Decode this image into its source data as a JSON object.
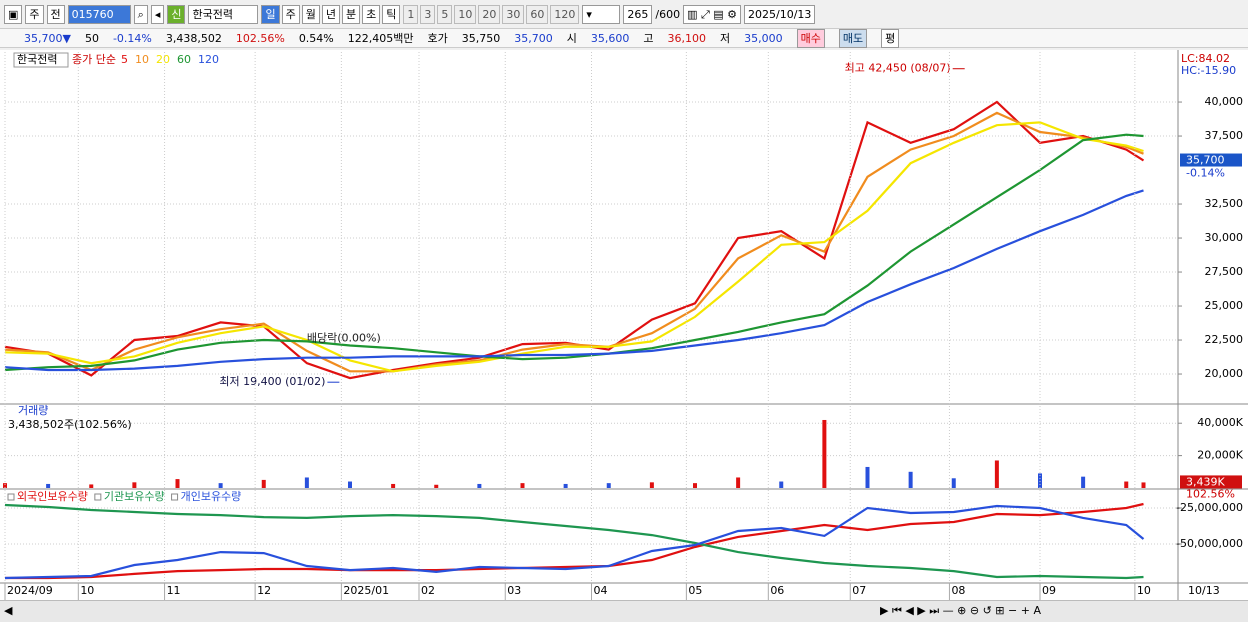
{
  "toolbar": {
    "market": "주",
    "prev": "전",
    "code": "015760",
    "new": "신",
    "name": "한국전력",
    "periods": [
      "일",
      "주",
      "월",
      "년",
      "분",
      "초",
      "틱"
    ],
    "intervals": [
      "1",
      "3",
      "5",
      "10",
      "20",
      "30",
      "60",
      "120"
    ],
    "count": "265",
    "max": "/600",
    "date": "2025/10/13"
  },
  "info": {
    "price": "35,700▼",
    "change": "50",
    "rate": "-0.14%",
    "volume": "3,438,502",
    "vol_ratio": "102.56%",
    "turnover": "0.54%",
    "amount": "122,405백만",
    "bid_label": "호가",
    "ask": "35,750",
    "bid": "35,700",
    "open_label": "시",
    "open": "35,600",
    "high_label": "고",
    "high": "36,100",
    "low_label": "저",
    "low": "35,000",
    "buy": "매수",
    "sell": "매도",
    "avg": "평"
  },
  "chart_data": [
    {
      "type": "line",
      "label": "한국전력",
      "legend_title": "종가 단순",
      "x": [
        0,
        10,
        20,
        30,
        40,
        50,
        60,
        70,
        80,
        90,
        100,
        110,
        120,
        130,
        140,
        150,
        160,
        170,
        180,
        190,
        200,
        210,
        220,
        230,
        240,
        250,
        260,
        264
      ],
      "xlim": [
        0,
        272
      ],
      "ylim": [
        17870,
        43680
      ],
      "yticks": [
        {
          "value": 20000,
          "label": "20,000"
        },
        {
          "value": 22500,
          "label": "22,500"
        },
        {
          "value": 25000,
          "label": "25,000"
        },
        {
          "value": 27500,
          "label": "27,500"
        },
        {
          "value": 30000,
          "label": "30,000"
        },
        {
          "value": 32500,
          "label": "32,500"
        },
        {
          "value": 37500,
          "label": "37,500"
        },
        {
          "value": 40000,
          "label": "40,000"
        }
      ],
      "grid": true,
      "series": [
        {
          "name": "5",
          "color": "#e01010",
          "values": [
            22000,
            21500,
            19900,
            22500,
            22800,
            23800,
            23500,
            20800,
            19700,
            20300,
            20800,
            21200,
            22200,
            22300,
            21800,
            24000,
            25200,
            30000,
            30500,
            28500,
            38500,
            37000,
            38000,
            40000,
            37000,
            37500,
            36500,
            35700
          ]
        },
        {
          "name": "10",
          "color": "#f08c1e",
          "values": [
            21800,
            21600,
            20300,
            21800,
            22700,
            23300,
            23700,
            21700,
            20200,
            20200,
            20700,
            21000,
            21800,
            22200,
            22000,
            23000,
            24800,
            28500,
            30200,
            29000,
            34500,
            36500,
            37500,
            39200,
            37800,
            37400,
            36700,
            36200
          ]
        },
        {
          "name": "20",
          "color": "#f5e600",
          "values": [
            21600,
            21500,
            20800,
            21300,
            22300,
            23000,
            23500,
            22500,
            21000,
            20200,
            20600,
            20900,
            21500,
            22000,
            22000,
            22400,
            24200,
            26800,
            29500,
            29700,
            32000,
            35500,
            37000,
            38300,
            38500,
            37300,
            36800,
            36400
          ]
        },
        {
          "name": "60",
          "color": "#1e9632",
          "values": [
            20300,
            20500,
            20600,
            21000,
            21800,
            22300,
            22500,
            22400,
            22100,
            21900,
            21600,
            21300,
            21100,
            21200,
            21500,
            21900,
            22500,
            23100,
            23800,
            24400,
            26500,
            29000,
            31000,
            33000,
            35000,
            37200,
            37600,
            37500
          ]
        },
        {
          "name": "120",
          "color": "#2850dc",
          "values": [
            20500,
            20300,
            20300,
            20400,
            20600,
            20900,
            21100,
            21200,
            21200,
            21300,
            21300,
            21300,
            21400,
            21400,
            21500,
            21700,
            22100,
            22500,
            23000,
            23600,
            25300,
            26600,
            27800,
            29200,
            30500,
            31700,
            33100,
            33500
          ]
        }
      ],
      "annotations": [
        {
          "text": "최고 42,450 (08/07)",
          "x": 223,
          "y": 42450
        },
        {
          "text": "최저 19,400 (01/02)",
          "x": 78,
          "y": 19400
        },
        {
          "text": "배당락(0.00%)",
          "x": 70,
          "y": 22600
        }
      ],
      "last": {
        "value": 35700,
        "label": "35,700"
      },
      "last_change": "-0.14%",
      "lc": "LC:84.02",
      "hc": "HC:-15.90"
    },
    {
      "type": "bar",
      "title": "거래량",
      "subtitle": "3,438,502주(102.56%)",
      "x": [
        0,
        10,
        20,
        30,
        40,
        50,
        60,
        70,
        80,
        90,
        100,
        110,
        120,
        130,
        140,
        150,
        160,
        170,
        180,
        190,
        200,
        210,
        220,
        230,
        240,
        250,
        260,
        264
      ],
      "xlim": [
        0,
        272
      ],
      "ylim": [
        0,
        51250
      ],
      "yticks": [
        {
          "value": 20000,
          "label": "20,000K"
        },
        {
          "value": 40000,
          "label": "40,000K"
        }
      ],
      "grid": true,
      "values": [
        3000,
        2500,
        2200,
        3500,
        5500,
        3000,
        5000,
        6500,
        4000,
        2500,
        2000,
        2500,
        3000,
        2500,
        3000,
        3500,
        3000,
        6500,
        4000,
        42000,
        13000,
        10000,
        6000,
        17000,
        9000,
        7000,
        4000,
        3439
      ],
      "colors": [
        "#e01010",
        "#2850dc",
        "#e01010",
        "#e01010",
        "#e01010",
        "#2850dc",
        "#e01010",
        "#2850dc",
        "#2850dc",
        "#e01010",
        "#e01010",
        "#2850dc",
        "#e01010",
        "#2850dc",
        "#2850dc",
        "#e01010",
        "#e01010",
        "#e01010",
        "#2850dc",
        "#e01010",
        "#2850dc",
        "#2850dc",
        "#2850dc",
        "#e01010",
        "#2850dc",
        "#2850dc",
        "#e01010",
        "#e01010"
      ],
      "last": {
        "value": 3439,
        "label": "3,439K"
      },
      "last_ratio": "102.56%"
    },
    {
      "type": "line",
      "x": [
        0,
        10,
        20,
        30,
        40,
        50,
        60,
        70,
        80,
        90,
        100,
        110,
        120,
        130,
        140,
        150,
        160,
        170,
        180,
        190,
        200,
        210,
        220,
        230,
        240,
        250,
        260,
        264
      ],
      "xlim": [
        0,
        272
      ],
      "ylim": [
        -76400000,
        -12500000
      ],
      "yticks": [
        {
          "value": -50000000,
          "label": "-50,000,000"
        },
        {
          "value": -25000000,
          "label": "-25,000,000"
        }
      ],
      "grid": true,
      "xticks": [
        {
          "value": 0,
          "label": "2024/09"
        },
        {
          "value": 17,
          "label": "10"
        },
        {
          "value": 37,
          "label": "11"
        },
        {
          "value": 58,
          "label": "12"
        },
        {
          "value": 78,
          "label": "2025/01"
        },
        {
          "value": 96,
          "label": "02"
        },
        {
          "value": 116,
          "label": "03"
        },
        {
          "value": 136,
          "label": "04"
        },
        {
          "value": 158,
          "label": "05"
        },
        {
          "value": 177,
          "label": "06"
        },
        {
          "value": 196,
          "label": "07"
        },
        {
          "value": 219,
          "label": "08"
        },
        {
          "value": 240,
          "label": "09"
        },
        {
          "value": 262,
          "label": "10"
        }
      ],
      "xaxis_end": "10/13",
      "series": [
        {
          "name": "외국인보유수량",
          "color": "#e01010",
          "values": [
            -73600000,
            -73600000,
            -72900000,
            -70800000,
            -68800000,
            -68100000,
            -67400000,
            -67400000,
            -68100000,
            -68100000,
            -68100000,
            -67400000,
            -66700000,
            -66000000,
            -65300000,
            -61100000,
            -52100000,
            -45100000,
            -41000000,
            -36800000,
            -40300000,
            -36100000,
            -34700000,
            -29200000,
            -29900000,
            -27800000,
            -25000000,
            -22200000
          ]
        },
        {
          "name": "기관보유수량",
          "color": "#1e9650",
          "values": [
            -22900000,
            -24300000,
            -26400000,
            -27800000,
            -29200000,
            -29900000,
            -31300000,
            -31900000,
            -30600000,
            -29900000,
            -30600000,
            -31900000,
            -34700000,
            -37500000,
            -40300000,
            -43800000,
            -49300000,
            -55600000,
            -59700000,
            -63200000,
            -65300000,
            -66700000,
            -68800000,
            -72900000,
            -72200000,
            -72900000,
            -73600000,
            -72900000
          ]
        },
        {
          "name": "개인보유수량",
          "color": "#2850dc",
          "values": [
            -73600000,
            -72900000,
            -72200000,
            -64600000,
            -61100000,
            -55600000,
            -56300000,
            -65300000,
            -68100000,
            -66700000,
            -69400000,
            -66000000,
            -66700000,
            -67400000,
            -65300000,
            -54900000,
            -50700000,
            -41000000,
            -38900000,
            -44400000,
            -25000000,
            -28500000,
            -27800000,
            -23600000,
            -25000000,
            -31900000,
            -36800000,
            -46500000
          ]
        }
      ]
    }
  ]
}
